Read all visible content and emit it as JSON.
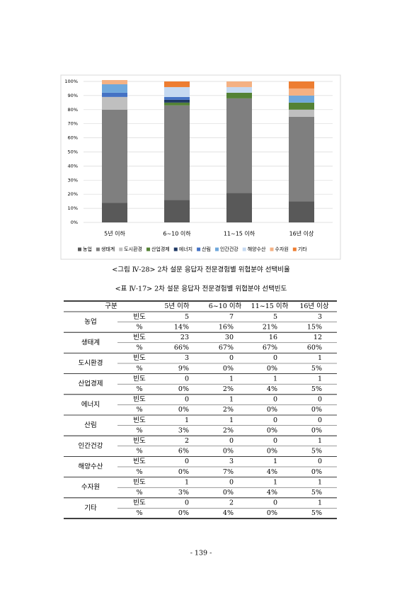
{
  "chart_data": {
    "type": "bar",
    "stacked": true,
    "categories": [
      "5년 이하",
      "6~10 이하",
      "11~15 이하",
      "16년 이상"
    ],
    "series": [
      {
        "name": "농업",
        "color": "#595959",
        "values": [
          14,
          16,
          21,
          15
        ]
      },
      {
        "name": "생태계",
        "color": "#7f7f7f",
        "values": [
          66,
          67,
          67,
          60
        ]
      },
      {
        "name": "도시환경",
        "color": "#bfbfbf",
        "values": [
          9,
          0,
          0,
          5
        ]
      },
      {
        "name": "산업경제",
        "color": "#548235",
        "values": [
          0,
          2,
          4,
          5
        ]
      },
      {
        "name": "에너지",
        "color": "#1f3864",
        "values": [
          0,
          2,
          0,
          0
        ]
      },
      {
        "name": "산림",
        "color": "#4472c4",
        "values": [
          3,
          2,
          0,
          0
        ]
      },
      {
        "name": "인간건강",
        "color": "#6fa8dc",
        "values": [
          6,
          0,
          0,
          5
        ]
      },
      {
        "name": "해양수산",
        "color": "#c5d9f1",
        "values": [
          0,
          7,
          4,
          0
        ]
      },
      {
        "name": "수자원",
        "color": "#f4b183",
        "values": [
          3,
          0,
          4,
          5
        ]
      },
      {
        "name": "기타",
        "color": "#ed7d31",
        "values": [
          0,
          4,
          0,
          5
        ]
      }
    ],
    "ylim": [
      0,
      100
    ],
    "yticks": [
      {
        "value": 0,
        "label": "0%"
      },
      {
        "value": 10,
        "label": "10%"
      },
      {
        "value": 20,
        "label": "20%"
      },
      {
        "value": 30,
        "label": "30%"
      },
      {
        "value": 40,
        "label": "40%"
      },
      {
        "value": 50,
        "label": "50%"
      },
      {
        "value": 60,
        "label": "60%"
      },
      {
        "value": 70,
        "label": "70%"
      },
      {
        "value": 80,
        "label": "80%"
      },
      {
        "value": 90,
        "label": "90%"
      },
      {
        "value": 100,
        "label": "100%"
      }
    ],
    "grid": true,
    "legend": "bottom"
  },
  "figure_caption": "<그림 Ⅳ-28> 2차 설문 응답자 전문경험별 위협분야 선택비율",
  "table": {
    "caption": "<표 Ⅳ-17> 2차 설문 응답자 전문경험별 위협분야 선택빈도",
    "header": [
      "구분",
      "5년 이하",
      "6~10 이하",
      "11~15 이하",
      "16년 이상"
    ],
    "groups": [
      {
        "name": "농업",
        "rows": [
          {
            "label": "빈도",
            "cells": [
              5,
              7,
              5,
              3
            ]
          },
          {
            "label": "%",
            "cells": [
              "14%",
              "16%",
              "21%",
              "15%"
            ]
          }
        ]
      },
      {
        "name": "생태계",
        "rows": [
          {
            "label": "빈도",
            "cells": [
              23,
              30,
              16,
              12
            ]
          },
          {
            "label": "%",
            "cells": [
              "66%",
              "67%",
              "67%",
              "60%"
            ]
          }
        ]
      },
      {
        "name": "도시환경",
        "rows": [
          {
            "label": "빈도",
            "cells": [
              3,
              0,
              0,
              1
            ]
          },
          {
            "label": "%",
            "cells": [
              "9%",
              "0%",
              "0%",
              "5%"
            ]
          }
        ]
      },
      {
        "name": "산업경제",
        "rows": [
          {
            "label": "빈도",
            "cells": [
              0,
              1,
              1,
              1
            ]
          },
          {
            "label": "%",
            "cells": [
              "0%",
              "2%",
              "4%",
              "5%"
            ]
          }
        ]
      },
      {
        "name": "에너지",
        "rows": [
          {
            "label": "빈도",
            "cells": [
              0,
              1,
              0,
              0
            ]
          },
          {
            "label": "%",
            "cells": [
              "0%",
              "2%",
              "0%",
              "0%"
            ]
          }
        ]
      },
      {
        "name": "산림",
        "rows": [
          {
            "label": "빈도",
            "cells": [
              1,
              1,
              0,
              0
            ]
          },
          {
            "label": "%",
            "cells": [
              "3%",
              "2%",
              "0%",
              "0%"
            ]
          }
        ]
      },
      {
        "name": "인간건강",
        "rows": [
          {
            "label": "빈도",
            "cells": [
              2,
              0,
              0,
              1
            ]
          },
          {
            "label": "%",
            "cells": [
              "6%",
              "0%",
              "0%",
              "5%"
            ]
          }
        ]
      },
      {
        "name": "해양수산",
        "rows": [
          {
            "label": "빈도",
            "cells": [
              0,
              3,
              1,
              0
            ]
          },
          {
            "label": "%",
            "cells": [
              "0%",
              "7%",
              "4%",
              "0%"
            ]
          }
        ]
      },
      {
        "name": "수자원",
        "rows": [
          {
            "label": "빈도",
            "cells": [
              1,
              0,
              1,
              1
            ]
          },
          {
            "label": "%",
            "cells": [
              "3%",
              "0%",
              "4%",
              "5%"
            ]
          }
        ]
      },
      {
        "name": "기타",
        "rows": [
          {
            "label": "빈도",
            "cells": [
              0,
              2,
              0,
              1
            ]
          },
          {
            "label": "%",
            "cells": [
              "0%",
              "4%",
              "0%",
              "5%"
            ]
          }
        ]
      }
    ]
  },
  "page_number": "- 139 -"
}
